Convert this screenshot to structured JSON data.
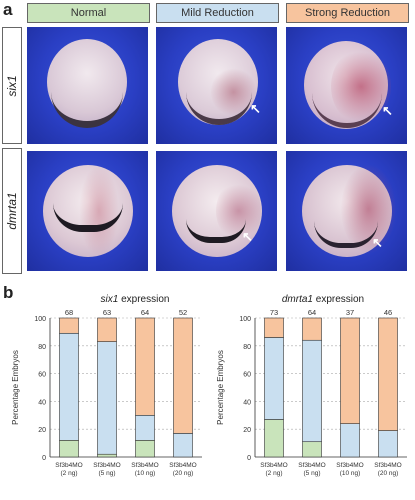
{
  "panel_a_label": "a",
  "panel_b_label": "b",
  "columns": [
    {
      "label": "Normal",
      "color": "#c9e4bb"
    },
    {
      "label": "Mild Reduction",
      "color": "#c9dff0"
    },
    {
      "label": "Strong Reduction",
      "color": "#f7c49e"
    }
  ],
  "rows": [
    {
      "gene": "six1"
    },
    {
      "gene": "dmrta1"
    }
  ],
  "chart_data": [
    {
      "type": "bar",
      "title_gene": "six1",
      "title_suffix": " expression",
      "ylabel": "Percentage Embryos",
      "ylim": [
        0,
        100
      ],
      "yticks": [
        "0",
        "20",
        "40",
        "60",
        "80",
        "100"
      ],
      "categories": [
        "Sf3b4MO\n(2 ng)",
        "Sf3b4MO\n(5 ng)",
        "Sf3b4MO\n(10 ng)",
        "Sf3b4MO\n(20 ng)"
      ],
      "n_labels": [
        "68",
        "63",
        "64",
        "52"
      ],
      "series": [
        {
          "name": "Normal",
          "values": [
            12,
            2,
            12,
            0
          ],
          "color": "#c9e4bb"
        },
        {
          "name": "Mild Reduction",
          "values": [
            77,
            81,
            18,
            17
          ],
          "color": "#c9dff0"
        },
        {
          "name": "Strong Reduction",
          "values": [
            11,
            17,
            70,
            83
          ],
          "color": "#f7c49e"
        }
      ]
    },
    {
      "type": "bar",
      "title_gene": "dmrta1",
      "title_suffix": " expression",
      "ylabel": "Percentage Embryos",
      "ylim": [
        0,
        100
      ],
      "yticks": [
        "0",
        "20",
        "40",
        "60",
        "80",
        "100"
      ],
      "categories": [
        "Sf3b4MO\n(2 ng)",
        "Sf3b4MO\n(5 ng)",
        "Sf3b4MO\n(10 ng)",
        "Sf3b4MO\n(20 ng)"
      ],
      "n_labels": [
        "73",
        "64",
        "37",
        "46"
      ],
      "series": [
        {
          "name": "Normal",
          "values": [
            27,
            11,
            0,
            0
          ],
          "color": "#c9e4bb"
        },
        {
          "name": "Mild Reduction",
          "values": [
            59,
            73,
            24,
            19
          ],
          "color": "#c9dff0"
        },
        {
          "name": "Strong Reduction",
          "values": [
            14,
            16,
            76,
            81
          ],
          "color": "#f7c49e"
        }
      ]
    }
  ]
}
